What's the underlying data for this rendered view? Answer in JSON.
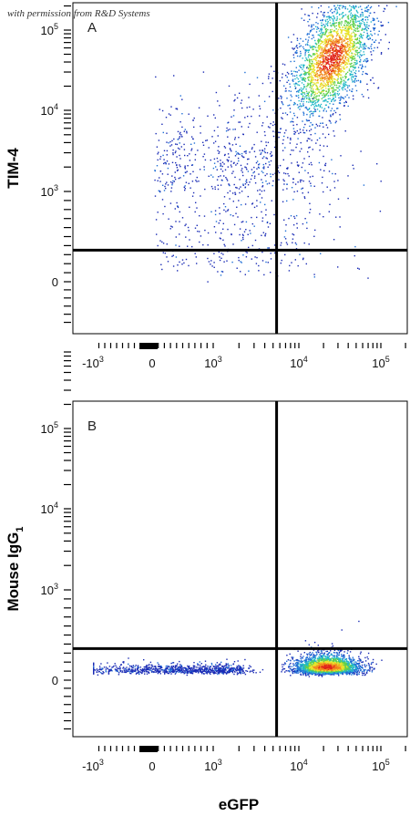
{
  "watermark": "with permission from R&D Systems",
  "x_axis_title": "eGFP",
  "chart_data": [
    {
      "type": "scatter",
      "panel_label": "A",
      "ylabel": "TIM-4",
      "xlabel": "eGFP",
      "x_scale": "biexponential",
      "y_scale": "biexponential",
      "x_ticks": [
        "-10^3",
        "0",
        "10^3",
        "10^4",
        "10^5"
      ],
      "y_ticks": [
        "0",
        "10^3",
        "10^4",
        "10^5"
      ],
      "quadrant_gate": {
        "x": 5500,
        "y": 350
      },
      "populations": [
        {
          "name": "",
          "center": [
            25000,
            45000
          ],
          "spread_decades": [
            0.25,
            0.4
          ],
          "density": "high"
        },
        {
          "name": "",
          "center": [
            2000,
            1500
          ],
          "spread_decades": [
            0.6,
            0.5
          ],
          "density": "low"
        }
      ]
    },
    {
      "type": "scatter",
      "panel_label": "B",
      "ylabel": "Mouse IgG1",
      "ylabel_main": "Mouse IgG",
      "ylabel_subscript": "1",
      "xlabel": "eGFP",
      "x_scale": "biexponential",
      "y_scale": "biexponential",
      "x_ticks": [
        "-10^3",
        "0",
        "10^3",
        "10^4",
        "10^5"
      ],
      "y_ticks": [
        "0",
        "10^3",
        "10^4",
        "10^5"
      ],
      "quadrant_gate": {
        "x": 5500,
        "y": 350
      },
      "populations": [
        {
          "name": "",
          "center": [
            22000,
            150
          ],
          "spread_decades": [
            0.2,
            0.15
          ],
          "density": "high"
        },
        {
          "name": "",
          "center": [
            500,
            120
          ],
          "spread_decades": [
            0.8,
            0.1
          ],
          "density": "low"
        }
      ]
    }
  ],
  "colors": {
    "background": "#ffffff",
    "axis": "#000000",
    "gate_line": "#000000",
    "density_scale": [
      "#1a2bb5",
      "#1f6fd6",
      "#22b8c8",
      "#5fd04e",
      "#e8e32c",
      "#f28a1e",
      "#e0241b"
    ]
  }
}
